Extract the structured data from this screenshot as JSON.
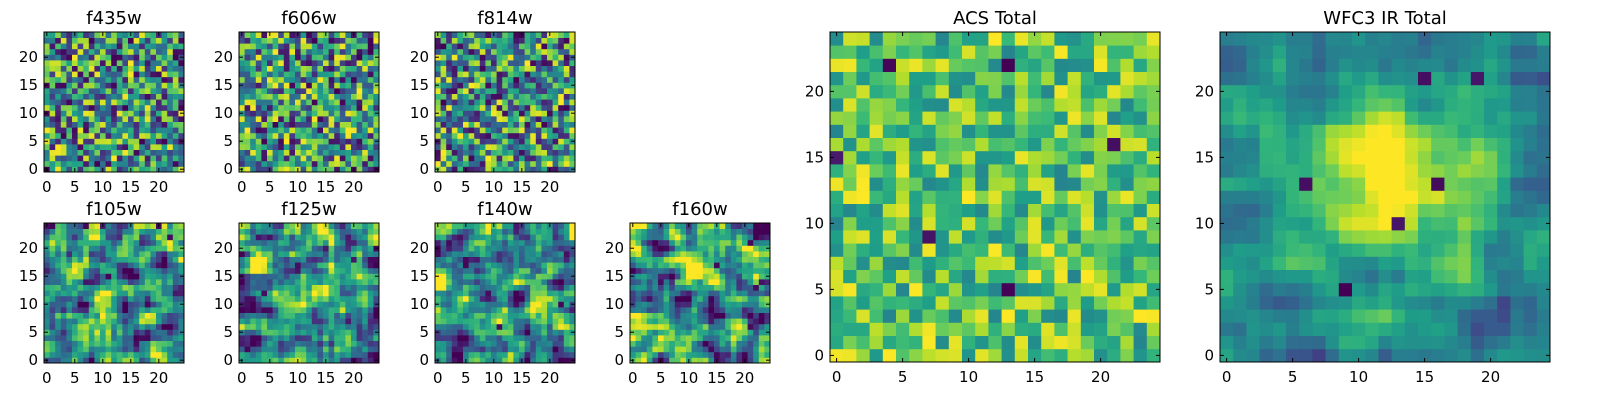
{
  "chart_data": [
    {
      "type": "heatmap",
      "title": "f435w",
      "xticks": [
        0,
        5,
        10,
        15,
        20
      ],
      "yticks": [
        0,
        5,
        10,
        15,
        20
      ],
      "xlim": [
        0,
        25
      ],
      "ylim": [
        0,
        25
      ],
      "grid": false,
      "colormap": "viridis",
      "pattern": "noise",
      "seed": 11
    },
    {
      "type": "heatmap",
      "title": "f606w",
      "xticks": [
        0,
        5,
        10,
        15,
        20
      ],
      "yticks": [
        0,
        5,
        10,
        15,
        20
      ],
      "xlim": [
        0,
        25
      ],
      "ylim": [
        0,
        25
      ],
      "grid": false,
      "colormap": "viridis",
      "pattern": "noise",
      "seed": 23
    },
    {
      "type": "heatmap",
      "title": "f814w",
      "xticks": [
        0,
        5,
        10,
        15,
        20
      ],
      "yticks": [
        0,
        5,
        10,
        15,
        20
      ],
      "xlim": [
        0,
        25
      ],
      "ylim": [
        0,
        25
      ],
      "grid": false,
      "colormap": "viridis",
      "pattern": "noise",
      "seed": 37
    },
    {
      "type": "heatmap",
      "title": "f105w",
      "xticks": [
        0,
        5,
        10,
        15,
        20
      ],
      "yticks": [
        0,
        5,
        10,
        15,
        20
      ],
      "xlim": [
        0,
        25
      ],
      "ylim": [
        0,
        25
      ],
      "grid": false,
      "colormap": "viridis",
      "pattern": "smooth",
      "seed": 41
    },
    {
      "type": "heatmap",
      "title": "f125w",
      "xticks": [
        0,
        5,
        10,
        15,
        20
      ],
      "yticks": [
        0,
        5,
        10,
        15,
        20
      ],
      "xlim": [
        0,
        25
      ],
      "ylim": [
        0,
        25
      ],
      "grid": false,
      "colormap": "viridis",
      "pattern": "smooth",
      "seed": 53
    },
    {
      "type": "heatmap",
      "title": "f140w",
      "xticks": [
        0,
        5,
        10,
        15,
        20
      ],
      "yticks": [
        0,
        5,
        10,
        15,
        20
      ],
      "xlim": [
        0,
        25
      ],
      "ylim": [
        0,
        25
      ],
      "grid": false,
      "colormap": "viridis",
      "pattern": "smooth",
      "seed": 67
    },
    {
      "type": "heatmap",
      "title": "f160w",
      "xticks": [
        0,
        5,
        10,
        15,
        20
      ],
      "yticks": [
        0,
        5,
        10,
        15,
        20
      ],
      "xlim": [
        0,
        25
      ],
      "ylim": [
        0,
        25
      ],
      "grid": false,
      "colormap": "viridis",
      "pattern": "smooth",
      "seed": 79
    },
    {
      "type": "heatmap",
      "title": "ACS Total",
      "xticks": [
        0,
        5,
        10,
        15,
        20
      ],
      "yticks": [
        0,
        5,
        10,
        15,
        20
      ],
      "xlim": [
        0,
        25
      ],
      "ylim": [
        0,
        25
      ],
      "grid": false,
      "colormap": "viridis",
      "pattern": "bright",
      "seed": 83
    },
    {
      "type": "heatmap",
      "title": "WFC3 IR Total",
      "xticks": [
        0,
        5,
        10,
        15,
        20
      ],
      "yticks": [
        0,
        5,
        10,
        15,
        20
      ],
      "xlim": [
        0,
        25
      ],
      "ylim": [
        0,
        25
      ],
      "grid": false,
      "colormap": "viridis",
      "pattern": "source",
      "seed": 97
    }
  ]
}
